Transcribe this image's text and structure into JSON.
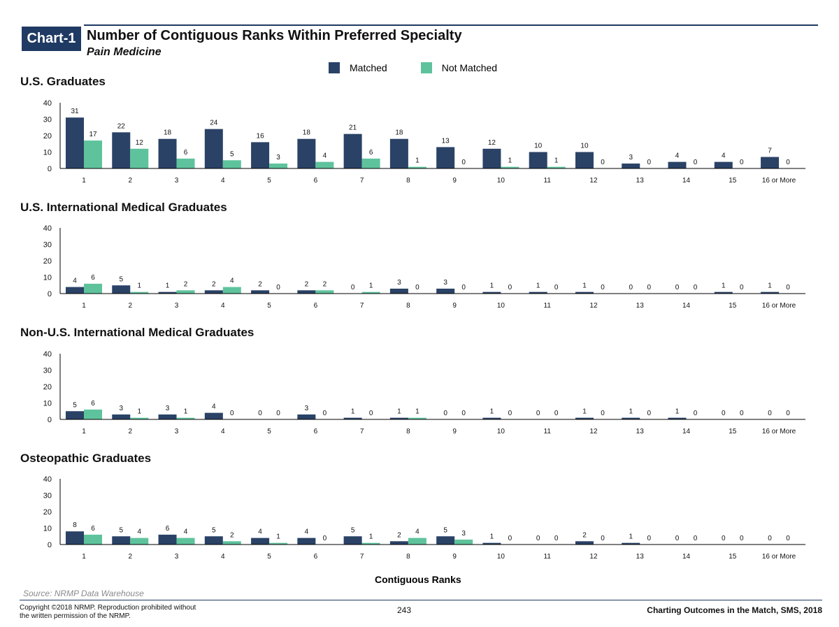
{
  "header": {
    "badge": "Chart-1",
    "title": "Number of Contiguous Ranks Within Preferred Specialty",
    "subtitle": "Pain Medicine"
  },
  "legend": {
    "matched_label": "Matched",
    "not_matched_label": "Not Matched"
  },
  "colors": {
    "matched": "#2a4266",
    "not_matched": "#5ec39c",
    "accent": "#1f3a63"
  },
  "chart_data": [
    {
      "type": "bar",
      "title": "U.S. Graduates",
      "categories": [
        "1",
        "2",
        "3",
        "4",
        "5",
        "6",
        "7",
        "8",
        "9",
        "10",
        "11",
        "12",
        "13",
        "14",
        "15",
        "16 or More"
      ],
      "series": [
        {
          "name": "Matched",
          "values": [
            31,
            22,
            18,
            24,
            16,
            18,
            21,
            18,
            13,
            12,
            10,
            10,
            3,
            4,
            4,
            7
          ]
        },
        {
          "name": "Not Matched",
          "values": [
            17,
            12,
            6,
            5,
            3,
            4,
            6,
            1,
            0,
            1,
            1,
            0,
            0,
            0,
            0,
            0
          ]
        }
      ],
      "ylim": [
        0,
        40
      ],
      "yticks": [
        0,
        10,
        20,
        30,
        40
      ],
      "xlabel": "",
      "ylabel": "",
      "grid": false,
      "legend": "top"
    },
    {
      "type": "bar",
      "title": "U.S. International Medical Graduates",
      "categories": [
        "1",
        "2",
        "3",
        "4",
        "5",
        "6",
        "7",
        "8",
        "9",
        "10",
        "11",
        "12",
        "13",
        "14",
        "15",
        "16 or More"
      ],
      "series": [
        {
          "name": "Matched",
          "values": [
            4,
            5,
            1,
            2,
            2,
            2,
            0,
            3,
            3,
            1,
            1,
            1,
            0,
            0,
            1,
            1
          ]
        },
        {
          "name": "Not Matched",
          "values": [
            6,
            1,
            2,
            4,
            0,
            2,
            1,
            0,
            0,
            0,
            0,
            0,
            0,
            0,
            0,
            0
          ]
        }
      ],
      "ylim": [
        0,
        40
      ],
      "yticks": [
        0,
        10,
        20,
        30,
        40
      ],
      "xlabel": "",
      "ylabel": "",
      "grid": false,
      "legend": "top"
    },
    {
      "type": "bar",
      "title": "Non-U.S. International Medical Graduates",
      "categories": [
        "1",
        "2",
        "3",
        "4",
        "5",
        "6",
        "7",
        "8",
        "9",
        "10",
        "11",
        "12",
        "13",
        "14",
        "15",
        "16 or More"
      ],
      "series": [
        {
          "name": "Matched",
          "values": [
            5,
            3,
            3,
            4,
            0,
            3,
            1,
            1,
            0,
            1,
            0,
            1,
            1,
            1,
            0,
            0
          ]
        },
        {
          "name": "Not Matched",
          "values": [
            6,
            1,
            1,
            0,
            0,
            0,
            0,
            1,
            0,
            0,
            0,
            0,
            0,
            0,
            0,
            0
          ]
        }
      ],
      "ylim": [
        0,
        40
      ],
      "yticks": [
        0,
        10,
        20,
        30,
        40
      ],
      "xlabel": "",
      "ylabel": "",
      "grid": false,
      "legend": "top"
    },
    {
      "type": "bar",
      "title": "Osteopathic Graduates",
      "categories": [
        "1",
        "2",
        "3",
        "4",
        "5",
        "6",
        "7",
        "8",
        "9",
        "10",
        "11",
        "12",
        "13",
        "14",
        "15",
        "16 or More"
      ],
      "series": [
        {
          "name": "Matched",
          "values": [
            8,
            5,
            6,
            5,
            4,
            4,
            5,
            2,
            5,
            1,
            0,
            2,
            1,
            0,
            0,
            0
          ]
        },
        {
          "name": "Not Matched",
          "values": [
            6,
            4,
            4,
            2,
            1,
            0,
            1,
            4,
            3,
            0,
            0,
            0,
            0,
            0,
            0,
            0
          ]
        }
      ],
      "ylim": [
        0,
        40
      ],
      "yticks": [
        0,
        10,
        20,
        30,
        40
      ],
      "xlabel": "Contiguous Ranks",
      "ylabel": "",
      "grid": false,
      "legend": "top"
    }
  ],
  "footer": {
    "source": "Source: NRMP Data Warehouse",
    "copyright_line1": "Copyright ©2018 NRMP. Reproduction prohibited without",
    "copyright_line2": "the written permission of the NRMP.",
    "page_number": "243",
    "publication": "Charting Outcomes in the Match, SMS, 2018"
  }
}
